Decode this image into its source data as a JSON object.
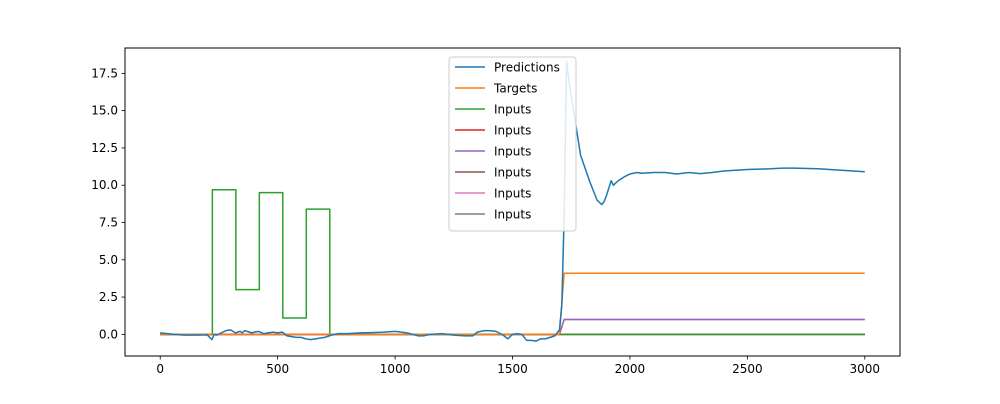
{
  "chart_data": {
    "type": "line",
    "title": "",
    "xlabel": "",
    "ylabel": "",
    "xlim": [
      -150,
      3150
    ],
    "ylim": [
      -1.45,
      19.2
    ],
    "xticks": [
      0,
      500,
      1000,
      1500,
      2000,
      2500,
      3000
    ],
    "xtick_labels": [
      "0",
      "500",
      "1000",
      "1500",
      "2000",
      "2500",
      "3000"
    ],
    "yticks": [
      0.0,
      2.5,
      5.0,
      7.5,
      10.0,
      12.5,
      15.0,
      17.5
    ],
    "ytick_labels": [
      "0.0",
      "2.5",
      "5.0",
      "7.5",
      "10.0",
      "12.5",
      "15.0",
      "17.5"
    ],
    "grid": false,
    "legend_position": "upper-center",
    "series": [
      {
        "name": "Predictions",
        "color": "#1f77b4",
        "x": [
          0,
          50,
          100,
          150,
          200,
          220,
          230,
          240,
          260,
          280,
          300,
          320,
          340,
          350,
          360,
          380,
          390,
          400,
          420,
          440,
          460,
          480,
          500,
          520,
          540,
          560,
          580,
          600,
          620,
          640,
          660,
          680,
          700,
          720,
          740,
          760,
          800,
          850,
          900,
          950,
          1000,
          1050,
          1100,
          1120,
          1150,
          1200,
          1250,
          1300,
          1330,
          1350,
          1380,
          1400,
          1430,
          1460,
          1480,
          1500,
          1520,
          1540,
          1560,
          1580,
          1600,
          1620,
          1640,
          1660,
          1680,
          1700,
          1710,
          1720,
          1730,
          1740,
          1760,
          1790,
          1830,
          1860,
          1880,
          1890,
          1900,
          1920,
          1930,
          1950,
          1980,
          2000,
          2030,
          2050,
          2100,
          2150,
          2200,
          2250,
          2300,
          2350,
          2400,
          2500,
          2600,
          2650,
          2700,
          2800,
          2900,
          3000
        ],
        "y": [
          0.1,
          0.02,
          -0.05,
          -0.05,
          -0.03,
          -0.35,
          0.0,
          -0.05,
          0.1,
          0.25,
          0.3,
          0.1,
          0.2,
          0.1,
          0.25,
          0.15,
          0.1,
          0.15,
          0.2,
          0.05,
          0.1,
          0.15,
          0.1,
          0.15,
          -0.1,
          -0.15,
          -0.2,
          -0.2,
          -0.3,
          -0.35,
          -0.3,
          -0.25,
          -0.2,
          -0.1,
          0.0,
          0.05,
          0.05,
          0.1,
          0.12,
          0.15,
          0.2,
          0.1,
          -0.1,
          -0.1,
          0.0,
          0.05,
          -0.05,
          -0.1,
          -0.1,
          0.15,
          0.25,
          0.25,
          0.2,
          -0.05,
          -0.3,
          0.0,
          0.05,
          0.0,
          -0.4,
          -0.4,
          -0.45,
          -0.3,
          -0.3,
          -0.2,
          -0.1,
          0.3,
          2.0,
          8.0,
          18.3,
          17.0,
          15.0,
          12.0,
          10.2,
          9.0,
          8.7,
          8.9,
          9.3,
          10.3,
          10.0,
          10.3,
          10.6,
          10.75,
          10.85,
          10.8,
          10.85,
          10.85,
          10.75,
          10.85,
          10.78,
          10.85,
          10.95,
          11.05,
          11.1,
          11.15,
          11.15,
          11.1,
          11.0,
          10.9
        ]
      },
      {
        "name": "Targets",
        "color": "#ff7f0e",
        "x": [
          0,
          1700,
          1720,
          3000
        ],
        "y": [
          0,
          0,
          4.1,
          4.1
        ]
      },
      {
        "name": "Inputs",
        "color": "#2ca02c",
        "x": [
          0,
          222,
          222,
          322,
          322,
          422,
          422,
          522,
          522,
          622,
          622,
          722,
          722,
          3000
        ],
        "y": [
          0,
          0,
          9.7,
          9.7,
          3.0,
          3.0,
          9.5,
          9.5,
          1.1,
          1.1,
          8.4,
          8.4,
          0,
          0
        ]
      },
      {
        "name": "Inputs",
        "color": "#d62728",
        "x": [
          0,
          3000
        ],
        "y": [
          0,
          0
        ]
      },
      {
        "name": "Inputs",
        "color": "#9467bd",
        "x": [
          0,
          1700,
          1720,
          3000
        ],
        "y": [
          0,
          0,
          1.0,
          1.0
        ]
      },
      {
        "name": "Inputs",
        "color": "#8c564b",
        "x": [
          0,
          3000
        ],
        "y": [
          0,
          0
        ]
      },
      {
        "name": "Inputs",
        "color": "#e377c2",
        "x": [
          0,
          1700,
          1720,
          3000
        ],
        "y": [
          0,
          0,
          1.0,
          1.0
        ]
      },
      {
        "name": "Inputs",
        "color": "#7f7f7f",
        "x": [
          0,
          3000
        ],
        "y": [
          0,
          0
        ]
      }
    ]
  }
}
